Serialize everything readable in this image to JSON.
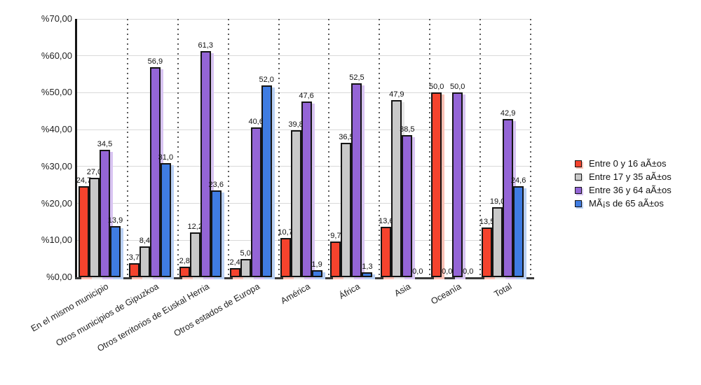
{
  "chart_data": {
    "type": "bar",
    "title": "",
    "categories": [
      "En el mismo municipio",
      "Otros municipios de Gipuzkoa",
      "Otros territorios de Euskal Herria",
      "Otros estados de Europa",
      "América",
      "África",
      "Asia",
      "Oceanía",
      "Total"
    ],
    "series": [
      {
        "name": "Entre 0 y 16 aÃ±os",
        "color": "#f5432d",
        "shadow_color": "#fbc0b4",
        "values": [
          24.7,
          3.7,
          2.8,
          2.4,
          10.7,
          9.7,
          13.6,
          50.0,
          13.5
        ],
        "labels": [
          "24,7",
          "3,7",
          "2,8",
          "2,4",
          "10,7",
          "9,7",
          "13,6",
          "50,0",
          "13,5"
        ]
      },
      {
        "name": "Entre 17 y 35 aÃ±os",
        "color": "#c9c9c9",
        "shadow_color": "#e6e6e6",
        "values": [
          27.0,
          8.4,
          12.2,
          5.0,
          39.8,
          36.5,
          47.9,
          0.0,
          19.0
        ],
        "labels": [
          "27,0",
          "8,4",
          "12,2",
          "5,0",
          "39,8",
          "36,5",
          "47,9",
          "0,0",
          "19,0"
        ]
      },
      {
        "name": "Entre 36 y 64 aÃ±os",
        "color": "#9465d6",
        "shadow_color": "#d8c4f2",
        "values": [
          34.5,
          56.9,
          61.3,
          40.6,
          47.6,
          52.5,
          38.5,
          50.0,
          42.9
        ],
        "labels": [
          "34,5",
          "56,9",
          "61,3",
          "40,6",
          "47,6",
          "52,5",
          "38,5",
          "50,0",
          "42,9"
        ]
      },
      {
        "name": "MÃ¡s de 65 aÃ±os",
        "color": "#3f7ce2",
        "shadow_color": "#b9d0f4",
        "values": [
          13.9,
          31.0,
          23.6,
          52.0,
          1.9,
          1.3,
          0.0,
          0.0,
          24.6
        ],
        "labels": [
          "13,9",
          "31,0",
          "23,6",
          "52,0",
          "1,9",
          "1,3",
          "0,0",
          "0,0",
          "24,6"
        ]
      }
    ],
    "ylim": [
      0,
      70
    ],
    "ytick_step": 10,
    "ytick_labels": [
      "%0,00",
      "%10,00",
      "%20,00",
      "%30,00",
      "%40,00",
      "%50,00",
      "%60,00",
      "%70,00"
    ],
    "xlabel": "",
    "ylabel": "",
    "grid": {
      "horizontal": "solid",
      "vertical": "dotted-category-separators"
    },
    "legend_position": "right",
    "value_label_decimal_separator": ","
  }
}
